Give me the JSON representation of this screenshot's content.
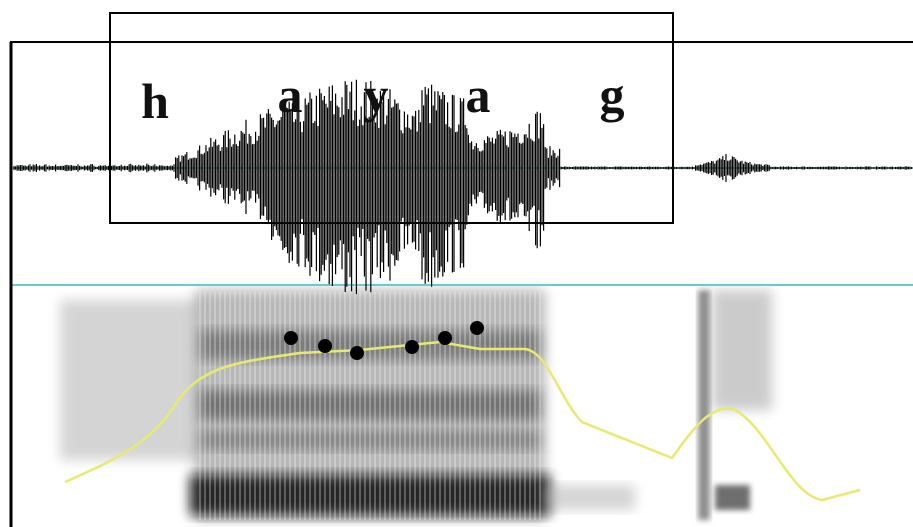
{
  "segments": [
    {
      "label": "h"
    },
    {
      "label": "a"
    },
    {
      "label": "y"
    },
    {
      "label": "a"
    },
    {
      "label": "g"
    }
  ]
}
